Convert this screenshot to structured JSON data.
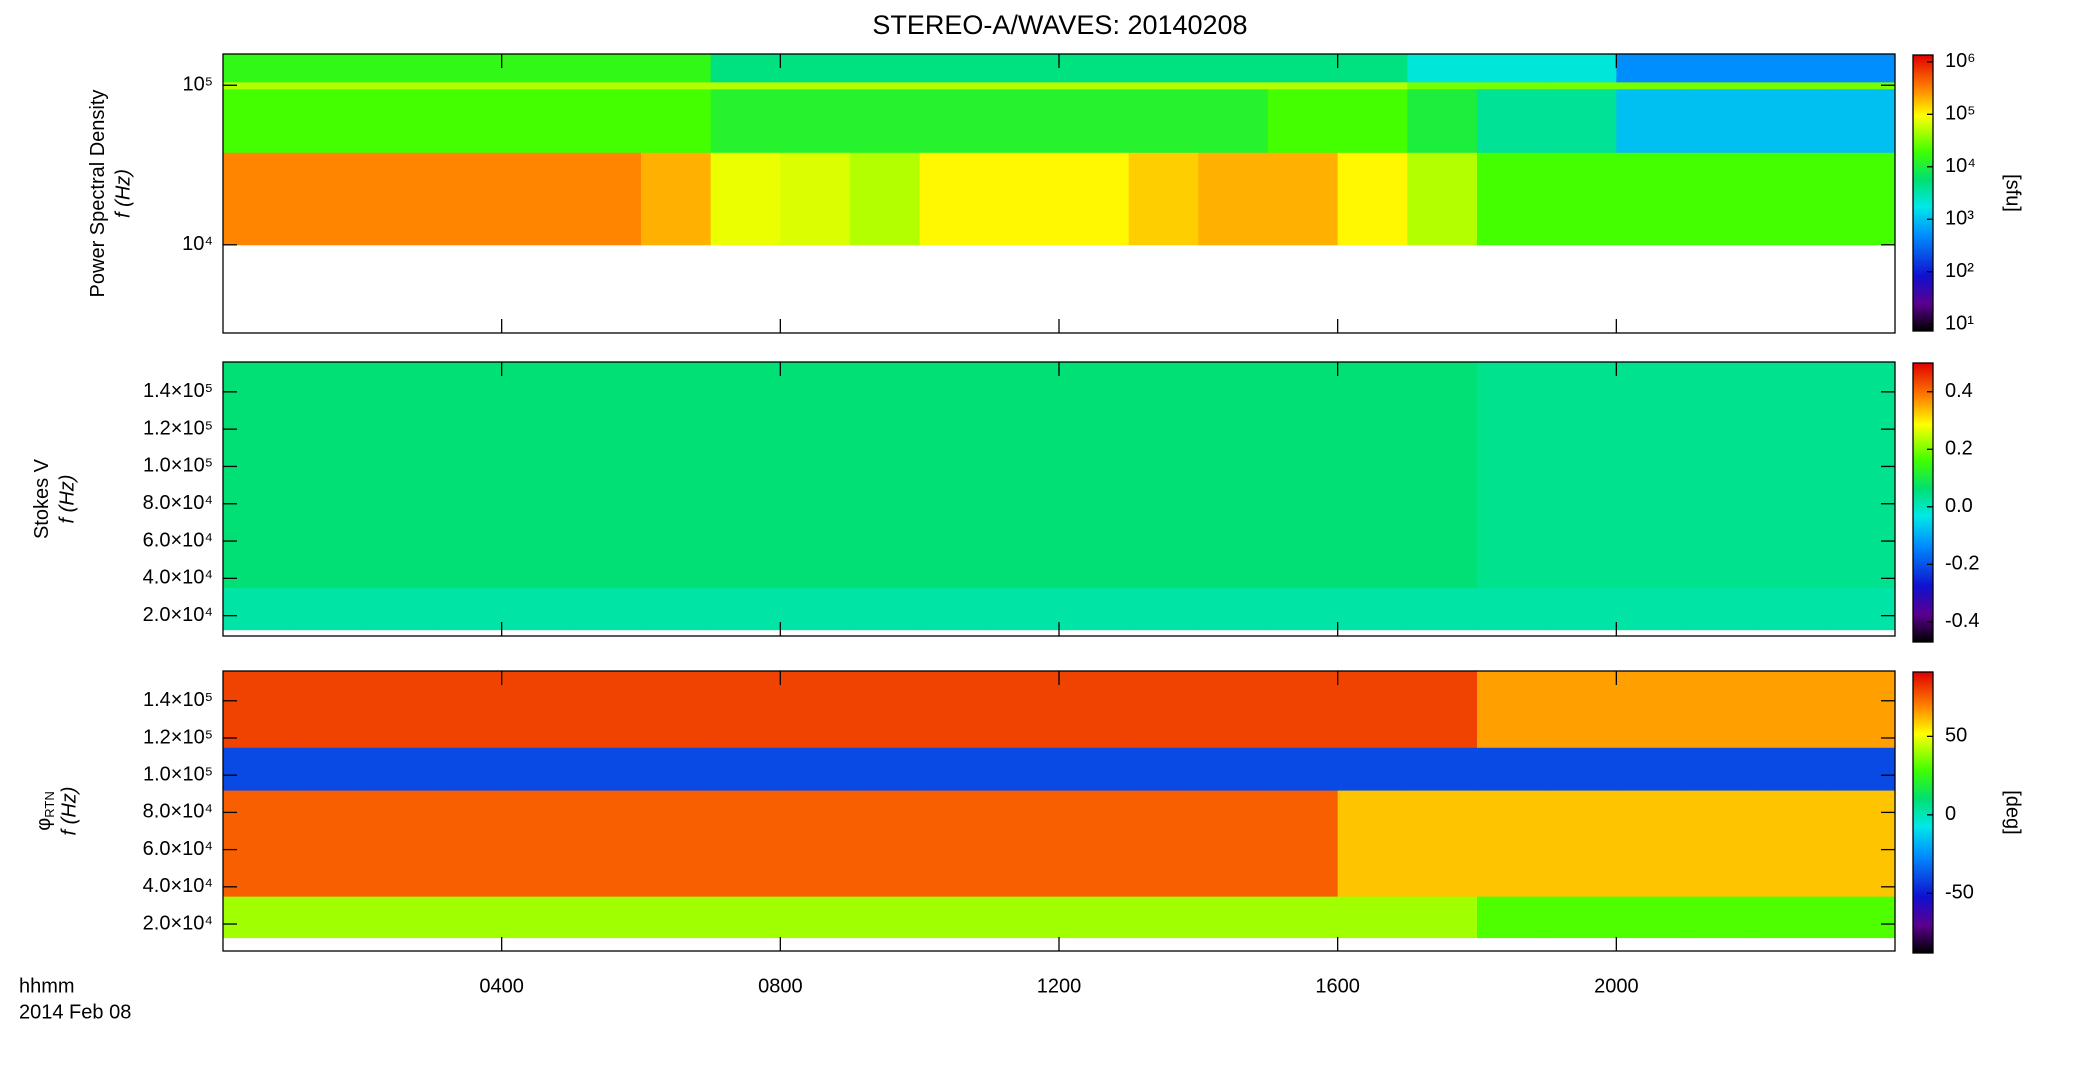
{
  "figure": {
    "title": "STEREO-A/WAVES: 20140208",
    "xlabel": "hhmm",
    "date_label": "2014 Feb 08"
  },
  "chart_data": [
    {
      "type": "heatmap",
      "ylabel": "Power Spectral Density",
      "ylabel2": "f (Hz)",
      "yscale": "log",
      "ylim": [
        2800,
        157000
      ],
      "yticks": [
        {
          "value": 10000,
          "label": "10⁴"
        },
        {
          "value": 100000,
          "label": "10⁵"
        }
      ],
      "x_bins": [
        0,
        1,
        2,
        3,
        4,
        5,
        6,
        7,
        8,
        9,
        10,
        11,
        12,
        13,
        14,
        15,
        16,
        17,
        18,
        19,
        20,
        21,
        22,
        23,
        24
      ],
      "y_bins": [
        10000,
        38000,
        95000,
        105000,
        157000
      ],
      "z": [
        [
          300000,
          300000,
          300000,
          300000,
          300000,
          300000,
          200000,
          80000,
          70000,
          50000,
          100000,
          100000,
          100000,
          150000,
          200000,
          200000,
          100000,
          50000,
          20000,
          20000,
          20000,
          20000,
          20000,
          20000
        ],
        [
          20000,
          20000,
          20000,
          20000,
          20000,
          20000,
          20000,
          12000,
          12000,
          12000,
          12000,
          12000,
          12000,
          12000,
          12000,
          20000,
          20000,
          10000,
          4000,
          4000,
          1000,
          1000,
          1000,
          1000
        ],
        [
          50000,
          50000,
          50000,
          50000,
          50000,
          50000,
          50000,
          50000,
          50000,
          50000,
          50000,
          50000,
          50000,
          50000,
          50000,
          50000,
          50000,
          30000,
          30000,
          30000,
          30000,
          30000,
          30000,
          30000
        ],
        [
          15000,
          15000,
          15000,
          15000,
          15000,
          15000,
          15000,
          5000,
          5000,
          5000,
          5000,
          5000,
          5000,
          5000,
          5000,
          5000,
          5000,
          2000,
          2000,
          2000,
          500,
          500,
          500,
          500
        ]
      ],
      "zscale": "log",
      "zlim": [
        7.4,
        1350000
      ],
      "zticks": [
        {
          "value": 10,
          "label": "10¹"
        },
        {
          "value": 100,
          "label": "10²"
        },
        {
          "value": 1000,
          "label": "10³"
        },
        {
          "value": 10000,
          "label": "10⁴"
        },
        {
          "value": 100000,
          "label": "10⁵"
        },
        {
          "value": 1000000,
          "label": "10⁶"
        }
      ],
      "zlabel": "[sfu]"
    },
    {
      "type": "heatmap",
      "ylabel": "Stokes V",
      "ylabel2": "f (Hz)",
      "yscale": "linear",
      "ylim": [
        9100,
        156000
      ],
      "yticks": [
        {
          "value": 20000,
          "label": "2.0×10⁴"
        },
        {
          "value": 40000,
          "label": "4.0×10⁴"
        },
        {
          "value": 60000,
          "label": "6.0×10⁴"
        },
        {
          "value": 80000,
          "label": "8.0×10⁴"
        },
        {
          "value": 100000,
          "label": "1.0×10⁵"
        },
        {
          "value": 120000,
          "label": "1.2×10⁵"
        },
        {
          "value": 140000,
          "label": "1.4×10⁵"
        }
      ],
      "x_bins": [
        0,
        1,
        2,
        3,
        4,
        5,
        6,
        7,
        8,
        9,
        10,
        11,
        12,
        13,
        14,
        15,
        16,
        17,
        18,
        19,
        20,
        21,
        22,
        23,
        24
      ],
      "y_bins": [
        12500,
        35000,
        156000
      ],
      "z": [
        [
          0.02,
          0.02,
          0.02,
          0.02,
          0.02,
          0.02,
          0.02,
          0.02,
          0.02,
          0.02,
          0.02,
          0.02,
          0.02,
          0.02,
          0.02,
          0.02,
          0.02,
          0.02,
          0.02,
          0.02,
          0.02,
          0.02,
          0.02,
          0.02
        ],
        [
          0.06,
          0.06,
          0.06,
          0.06,
          0.06,
          0.06,
          0.06,
          0.06,
          0.06,
          0.06,
          0.06,
          0.06,
          0.06,
          0.06,
          0.06,
          0.06,
          0.06,
          0.06,
          0.04,
          0.04,
          0.04,
          0.04,
          0.04,
          0.04
        ]
      ],
      "zscale": "linear",
      "zlim": [
        -0.47,
        0.5
      ],
      "zticks": [
        -0.4,
        -0.2,
        {
          "value": 0,
          "label": "0.0"
        },
        0.2,
        0.4
      ]
    },
    {
      "type": "heatmap",
      "ylabel": "φ",
      "ylabel_sub": "RTN",
      "ylabel2": "f (Hz)",
      "yscale": "linear",
      "ylim": [
        5500,
        156000
      ],
      "yticks": [
        {
          "value": 20000,
          "label": "2.0×10⁴"
        },
        {
          "value": 40000,
          "label": "4.0×10⁴"
        },
        {
          "value": 60000,
          "label": "6.0×10⁴"
        },
        {
          "value": 80000,
          "label": "8.0×10⁴"
        },
        {
          "value": 100000,
          "label": "1.0×10⁵"
        },
        {
          "value": 120000,
          "label": "1.2×10⁵"
        },
        {
          "value": 140000,
          "label": "1.4×10⁵"
        }
      ],
      "xlim": [
        0,
        24
      ],
      "xticks": [
        {
          "value": 4,
          "label": "0400"
        },
        {
          "value": 8,
          "label": "0800"
        },
        {
          "value": 12,
          "label": "1200"
        },
        {
          "value": 16,
          "label": "1600"
        },
        {
          "value": 20,
          "label": "2000"
        }
      ],
      "x_bins": [
        0,
        1,
        2,
        3,
        4,
        5,
        6,
        7,
        8,
        9,
        10,
        11,
        12,
        13,
        14,
        15,
        16,
        17,
        18,
        19,
        20,
        21,
        22,
        23,
        24
      ],
      "y_bins": [
        12700,
        35000,
        92000,
        115000,
        156000
      ],
      "z": [
        [
          40,
          40,
          40,
          40,
          40,
          40,
          40,
          40,
          40,
          40,
          40,
          40,
          40,
          40,
          40,
          40,
          40,
          40,
          30,
          30,
          30,
          30,
          30,
          30
        ],
        [
          75,
          75,
          75,
          75,
          75,
          75,
          75,
          75,
          75,
          75,
          75,
          75,
          75,
          75,
          75,
          75,
          60,
          60,
          60,
          60,
          60,
          60,
          60,
          60
        ],
        [
          -40,
          -40,
          -40,
          -40,
          -40,
          -40,
          -40,
          -40,
          -40,
          -40,
          -40,
          -40,
          -40,
          -40,
          -40,
          -40,
          -40,
          -40,
          -40,
          -40,
          -40,
          -40,
          -40,
          -40
        ],
        [
          80,
          80,
          80,
          80,
          80,
          80,
          80,
          80,
          80,
          80,
          80,
          80,
          80,
          80,
          80,
          80,
          80,
          80,
          65,
          65,
          65,
          65,
          65,
          65
        ]
      ],
      "zscale": "linear",
      "zlim": [
        -88,
        91
      ],
      "zticks": [
        -50,
        0,
        50
      ],
      "zlabel": "[deg]"
    }
  ]
}
